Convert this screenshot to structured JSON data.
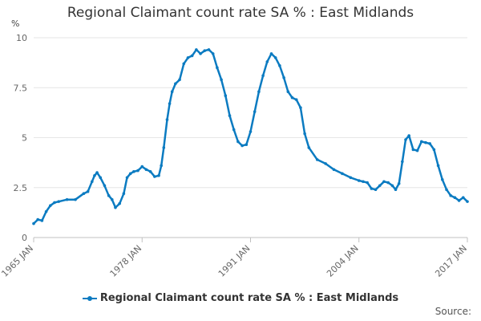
{
  "chart_data": {
    "type": "line",
    "title": "Regional Claimant count rate SA % : East Midlands",
    "ylabel": "%",
    "xlabel": "",
    "xlim": [
      1965,
      2017
    ],
    "ylim": [
      0,
      10
    ],
    "y_ticks": [
      0,
      2.5,
      5,
      7.5,
      10
    ],
    "y_tick_labels": [
      "0",
      "2.5",
      "5",
      "7.5",
      "10"
    ],
    "x_ticks": [
      1965,
      1978,
      1991,
      2004,
      2017
    ],
    "x_tick_labels": [
      "1965 JAN",
      "1978 JAN",
      "1991 JAN",
      "2004 JAN",
      "2017 JAN"
    ],
    "grid": true,
    "legend_position": "bottom",
    "series_color": "#0b7bc1",
    "series": [
      {
        "name": "Regional Claimant count rate SA % : East Midlands",
        "x": [
          1965.0,
          1965.5,
          1966.0,
          1966.5,
          1967.0,
          1967.5,
          1968.0,
          1969.0,
          1970.0,
          1971.0,
          1971.5,
          1972.0,
          1972.3,
          1972.6,
          1973.0,
          1973.5,
          1974.0,
          1974.4,
          1974.8,
          1975.3,
          1975.8,
          1976.2,
          1976.6,
          1977.0,
          1977.5,
          1978.0,
          1978.5,
          1979.0,
          1979.5,
          1980.0,
          1980.3,
          1980.6,
          1981.0,
          1981.3,
          1981.6,
          1982.0,
          1982.5,
          1983.0,
          1983.5,
          1984.0,
          1984.5,
          1985.0,
          1985.5,
          1986.0,
          1986.5,
          1987.0,
          1987.5,
          1988.0,
          1988.5,
          1989.0,
          1989.5,
          1990.0,
          1990.5,
          1991.0,
          1991.5,
          1992.0,
          1992.5,
          1993.0,
          1993.5,
          1994.0,
          1994.5,
          1995.0,
          1995.5,
          1996.0,
          1996.5,
          1997.0,
          1997.5,
          1998.0,
          1999.0,
          2000.0,
          2001.0,
          2002.0,
          2003.0,
          2004.0,
          2004.5,
          2005.0,
          2005.5,
          2006.0,
          2006.5,
          2007.0,
          2007.5,
          2008.0,
          2008.4,
          2008.8,
          2009.2,
          2009.6,
          2010.0,
          2010.5,
          2011.0,
          2011.5,
          2012.0,
          2012.5,
          2013.0,
          2013.5,
          2014.0,
          2014.5,
          2015.0,
          2015.5,
          2016.0,
          2016.5,
          2017.0
        ],
        "y": [
          0.7,
          0.9,
          0.85,
          1.3,
          1.6,
          1.75,
          1.8,
          1.9,
          1.9,
          2.2,
          2.3,
          2.8,
          3.1,
          3.25,
          3.0,
          2.6,
          2.1,
          1.9,
          1.5,
          1.7,
          2.2,
          3.0,
          3.2,
          3.3,
          3.35,
          3.55,
          3.4,
          3.3,
          3.05,
          3.1,
          3.6,
          4.5,
          5.9,
          6.7,
          7.3,
          7.7,
          7.9,
          8.7,
          9.0,
          9.1,
          9.4,
          9.2,
          9.35,
          9.4,
          9.2,
          8.5,
          7.9,
          7.1,
          6.1,
          5.4,
          4.8,
          4.6,
          4.65,
          5.3,
          6.3,
          7.3,
          8.1,
          8.8,
          9.2,
          9.0,
          8.6,
          8.0,
          7.3,
          7.0,
          6.9,
          6.5,
          5.2,
          4.5,
          3.9,
          3.7,
          3.4,
          3.2,
          3.0,
          2.85,
          2.8,
          2.75,
          2.45,
          2.4,
          2.6,
          2.8,
          2.75,
          2.6,
          2.4,
          2.7,
          3.8,
          4.9,
          5.1,
          4.4,
          4.35,
          4.8,
          4.75,
          4.7,
          4.4,
          3.6,
          2.9,
          2.4,
          2.1,
          2.0,
          1.85,
          2.0,
          1.8
        ]
      }
    ]
  },
  "legend": {
    "label": "Regional Claimant count rate SA % : East Midlands"
  },
  "footer": {
    "source_label": "Source:"
  }
}
